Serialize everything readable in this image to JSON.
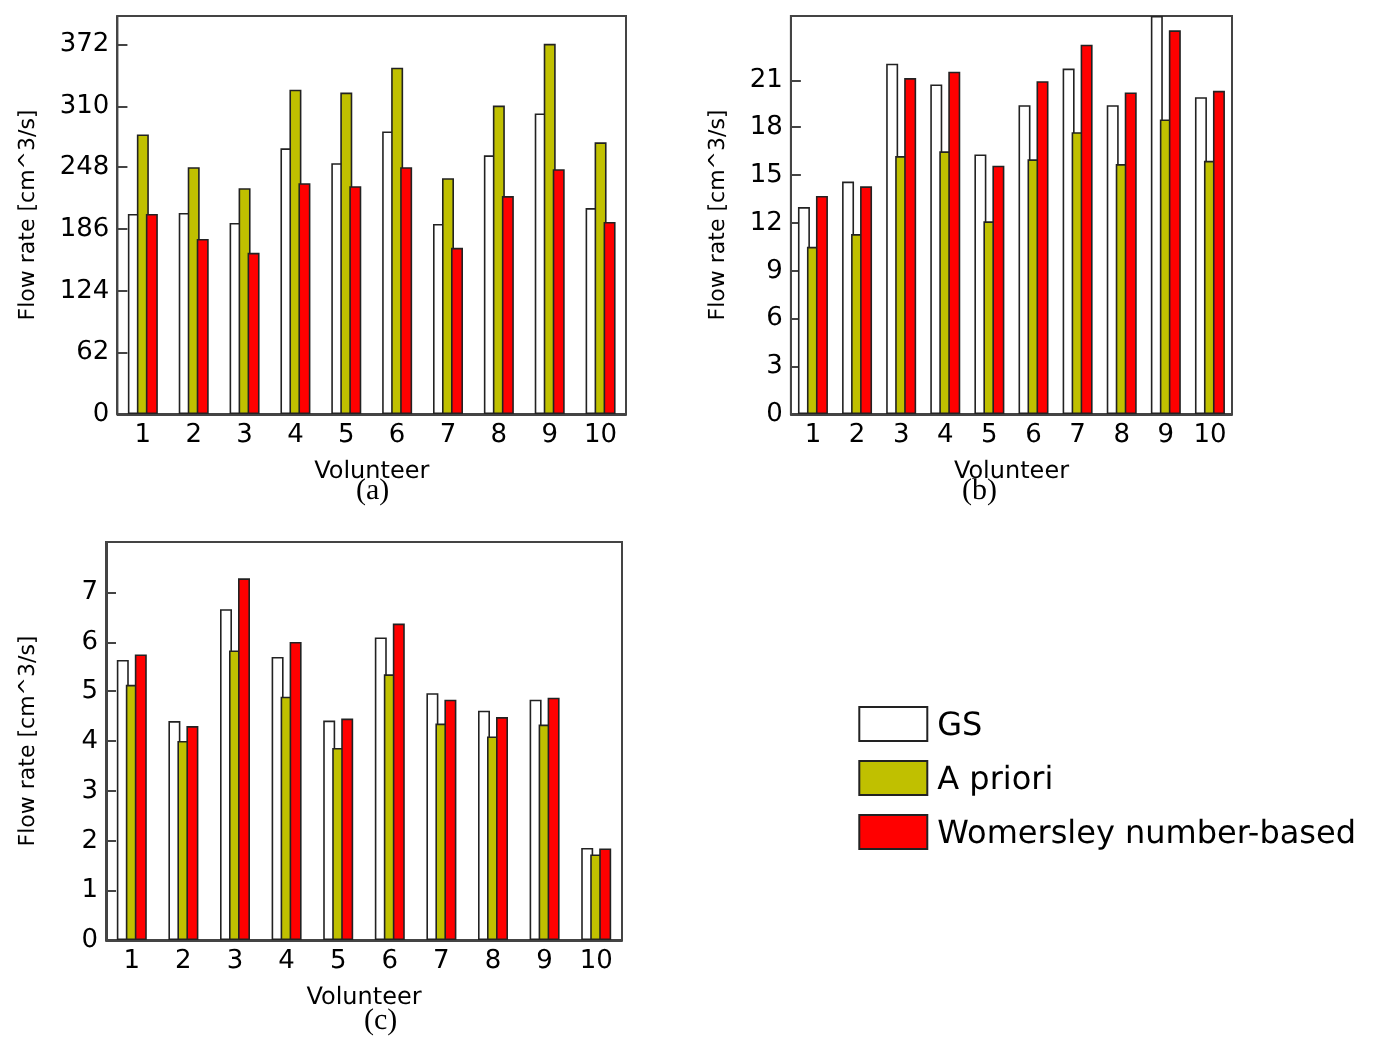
{
  "chart_data": [
    {
      "type": "bar",
      "categories": [
        "1",
        "2",
        "3",
        "4",
        "5",
        "6",
        "7",
        "8",
        "9",
        "10"
      ],
      "xlabel": "Volunteer",
      "ylabel": "Flow rate [cm^3/s]",
      "ylim": [
        0,
        400
      ],
      "yticks": [
        0,
        62,
        124,
        186,
        248,
        310,
        372
      ],
      "grid": false,
      "legend": false,
      "annotations": [
        "(a)"
      ],
      "series": [
        {
          "color": "#ffffff",
          "values": [
            201,
            202,
            192,
            267,
            252,
            284,
            191,
            260,
            302,
            207
          ]
        },
        {
          "color": "#c0c000",
          "values": [
            281,
            248,
            227,
            326,
            323,
            348,
            237,
            310,
            372,
            273
          ]
        },
        {
          "color": "#ff0000",
          "values": [
            201,
            176,
            162,
            232,
            229,
            248,
            167,
            219,
            246,
            193
          ]
        }
      ]
    },
    {
      "type": "bar",
      "categories": [
        "1",
        "2",
        "3",
        "4",
        "5",
        "6",
        "7",
        "8",
        "9",
        "10"
      ],
      "xlabel": "Volunteer",
      "ylabel": "Flow rate [cm^3/s]",
      "ylim": [
        0,
        25
      ],
      "yticks": [
        0,
        3,
        6,
        9,
        12,
        15,
        18,
        21
      ],
      "grid": false,
      "legend": false,
      "annotations": [
        "(b)"
      ],
      "series": [
        {
          "color": "#ffffff",
          "values": [
            13.0,
            14.6,
            22.0,
            20.7,
            16.3,
            19.4,
            21.7,
            19.4,
            25,
            19.9
          ]
        },
        {
          "color": "#c0c000",
          "values": [
            10.5,
            11.3,
            16.2,
            16.5,
            12.1,
            16.0,
            17.7,
            15.7,
            18.5,
            15.9
          ]
        },
        {
          "color": "#ff0000",
          "values": [
            13.7,
            14.3,
            21.1,
            21.5,
            15.6,
            20.9,
            23.2,
            20.2,
            24.1,
            20.3
          ]
        }
      ]
    },
    {
      "type": "bar",
      "categories": [
        "1",
        "2",
        "3",
        "4",
        "5",
        "6",
        "7",
        "8",
        "9",
        "10"
      ],
      "xlabel": "Volunteer",
      "ylabel": "Flow rate [cm^3/s]",
      "ylim": [
        0,
        8
      ],
      "yticks": [
        0,
        1,
        2,
        3,
        4,
        5,
        6,
        7
      ],
      "grid": false,
      "legend": "right",
      "annotations": [
        "(c)"
      ],
      "series": [
        {
          "name": "GS",
          "color": "#ffffff",
          "values": [
            5.63,
            4.4,
            6.65,
            5.69,
            4.41,
            6.08,
            4.96,
            4.61,
            4.83,
            1.85
          ]
        },
        {
          "name": "A priori",
          "color": "#c0c000",
          "values": [
            5.13,
            4.0,
            5.82,
            4.89,
            3.86,
            5.34,
            4.35,
            4.09,
            4.33,
            1.72
          ]
        },
        {
          "name": "Womersley number-based",
          "color": "#ff0000",
          "values": [
            5.74,
            4.3,
            7.27,
            5.99,
            4.45,
            6.36,
            4.83,
            4.48,
            4.87,
            1.84
          ]
        }
      ]
    }
  ]
}
